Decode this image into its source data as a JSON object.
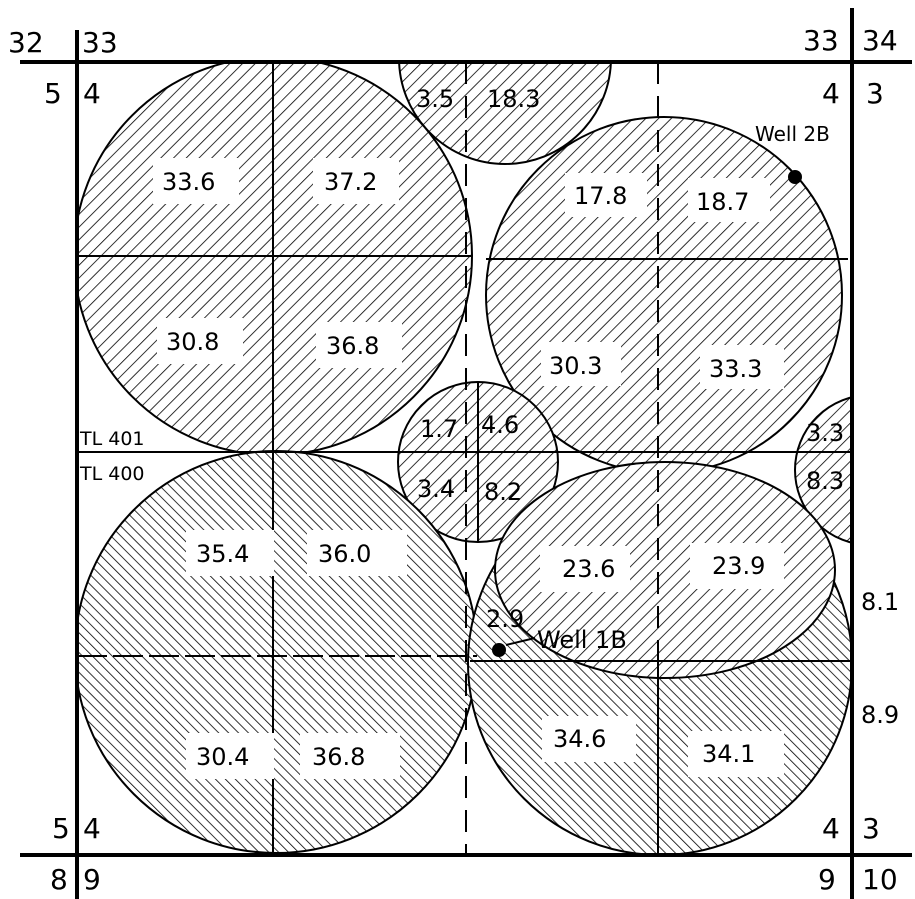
{
  "corners": {
    "top_left_outer": "32",
    "top_left_inner": "33",
    "top_right_inner": "33",
    "top_right_outer": "34",
    "left_top_outer": "5",
    "left_top_inner": "4",
    "right_top_inner": "4",
    "right_top_outer": "3",
    "left_bottom_outer": "5",
    "left_bottom_inner": "4",
    "right_bottom_inner": "4",
    "right_bottom_outer": "3",
    "bottom_left_outer": "8",
    "bottom_left_inner": "9",
    "bottom_right_inner": "9",
    "bottom_right_outer": "10"
  },
  "tract_lines": {
    "upper": "TL 401",
    "lower": "TL 400"
  },
  "wells": {
    "well_1b": "Well 1B",
    "well_2b": "Well 2B"
  },
  "circles": {
    "top_small": {
      "a": "3.5",
      "b": "18.3"
    },
    "upper_left": {
      "q1": "33.6",
      "q2": "37.2",
      "q3": "30.8",
      "q4": "36.8"
    },
    "upper_right": {
      "q1": "17.8",
      "q2": "18.7",
      "q3": "30.3",
      "q4": "33.3"
    },
    "middle_small": {
      "q1": "1.7",
      "q2": "4.6",
      "q3": "3.4",
      "q4": "8.2"
    },
    "right_edge_small": {
      "top": "3.3",
      "bottom": "8.3"
    },
    "lower_left": {
      "q1": "35.4",
      "q2": "36.0",
      "q3": "30.4",
      "q4": "36.8"
    },
    "lower_right": {
      "q1": "23.6",
      "q2": "23.9",
      "q3": "34.6",
      "q4": "34.1"
    },
    "sliver": "2.9"
  },
  "edge_values": {
    "upper": "8.1",
    "lower": "8.9"
  }
}
